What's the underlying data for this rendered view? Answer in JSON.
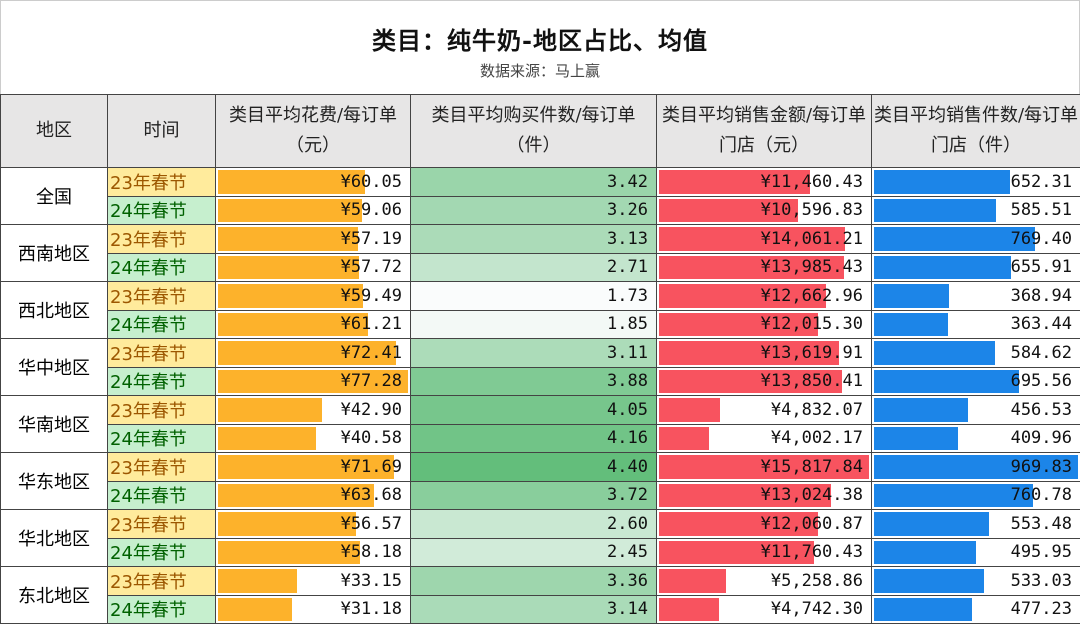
{
  "title": "类目：纯牛奶-地区占比、均值",
  "subtitle": "数据来源：马上赢",
  "headers": [
    "地区",
    "时间",
    "类目平均花费/每订单（元）",
    "类目平均购买件数/每订单（件）",
    "类目平均销售金额/每订单门店（元）",
    "类目平均销售件数/每订单门店（件）"
  ],
  "colors": {
    "spend_bar": "#fdb22b",
    "qty_scale_max": "#63be7b",
    "qty_scale_min": "#fafcfc",
    "sales_bar": "#f8535f",
    "units_bar": "#1c85e8"
  },
  "rows": [
    {
      "region": "全国",
      "periods": [
        {
          "time": "23年春节",
          "spend": "¥60.05",
          "qty": "3.42",
          "sales": "¥11,460.43",
          "units": "652.31"
        },
        {
          "time": "24年春节",
          "spend": "¥59.06",
          "qty": "3.26",
          "sales": "¥10,596.83",
          "units": "585.51"
        }
      ]
    },
    {
      "region": "西南地区",
      "periods": [
        {
          "time": "23年春节",
          "spend": "¥57.19",
          "qty": "3.13",
          "sales": "¥14,061.21",
          "units": "769.40"
        },
        {
          "time": "24年春节",
          "spend": "¥57.72",
          "qty": "2.71",
          "sales": "¥13,985.43",
          "units": "655.91"
        }
      ]
    },
    {
      "region": "西北地区",
      "periods": [
        {
          "time": "23年春节",
          "spend": "¥59.49",
          "qty": "1.73",
          "sales": "¥12,662.96",
          "units": "368.94"
        },
        {
          "time": "24年春节",
          "spend": "¥61.21",
          "qty": "1.85",
          "sales": "¥12,015.30",
          "units": "363.44"
        }
      ]
    },
    {
      "region": "华中地区",
      "periods": [
        {
          "time": "23年春节",
          "spend": "¥72.41",
          "qty": "3.11",
          "sales": "¥13,619.91",
          "units": "584.62"
        },
        {
          "time": "24年春节",
          "spend": "¥77.28",
          "qty": "3.88",
          "sales": "¥13,850.41",
          "units": "695.56"
        }
      ]
    },
    {
      "region": "华南地区",
      "periods": [
        {
          "time": "23年春节",
          "spend": "¥42.90",
          "qty": "4.05",
          "sales": "¥4,832.07",
          "units": "456.53"
        },
        {
          "time": "24年春节",
          "spend": "¥40.58",
          "qty": "4.16",
          "sales": "¥4,002.17",
          "units": "409.96"
        }
      ]
    },
    {
      "region": "华东地区",
      "periods": [
        {
          "time": "23年春节",
          "spend": "¥71.69",
          "qty": "4.40",
          "sales": "¥15,817.84",
          "units": "969.83"
        },
        {
          "time": "24年春节",
          "spend": "¥63.68",
          "qty": "3.72",
          "sales": "¥13,024.38",
          "units": "760.78"
        }
      ]
    },
    {
      "region": "华北地区",
      "periods": [
        {
          "time": "23年春节",
          "spend": "¥56.57",
          "qty": "2.60",
          "sales": "¥12,060.87",
          "units": "553.48"
        },
        {
          "time": "24年春节",
          "spend": "¥58.18",
          "qty": "2.45",
          "sales": "¥11,760.43",
          "units": "495.95"
        }
      ]
    },
    {
      "region": "东北地区",
      "periods": [
        {
          "time": "23年春节",
          "spend": "¥33.15",
          "qty": "3.36",
          "sales": "¥5,258.86",
          "units": "533.03"
        },
        {
          "time": "24年春节",
          "spend": "¥31.18",
          "qty": "3.14",
          "sales": "¥4,742.30",
          "units": "477.23"
        }
      ]
    }
  ]
}
